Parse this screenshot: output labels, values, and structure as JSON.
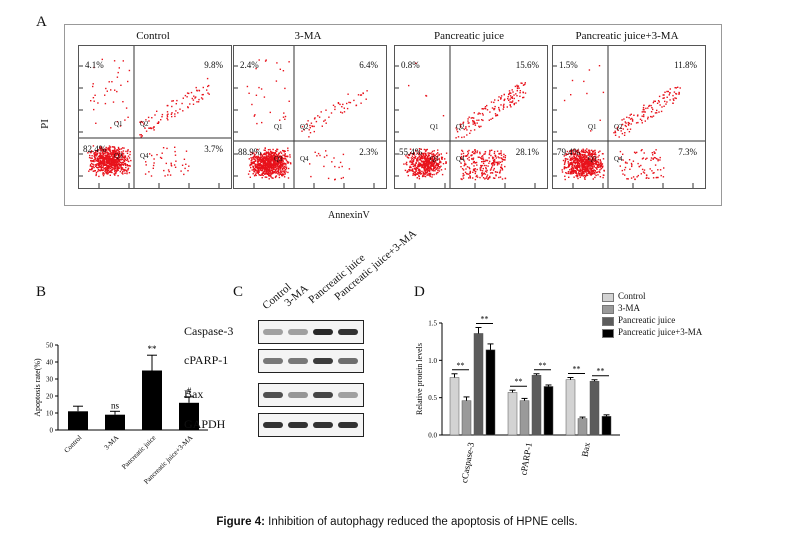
{
  "panel_labels": {
    "a": "A",
    "b": "B",
    "c": "C",
    "d": "D"
  },
  "flow": {
    "ylabel": "PI",
    "xlabel": "AnnexinV",
    "quadrant_names": [
      "Q1",
      "Q2",
      "Q3",
      "Q4"
    ],
    "panels": [
      {
        "title": "Control",
        "q1": "4.1%",
        "q2": "9.8%",
        "q3": "82.4%",
        "q4": "3.7%"
      },
      {
        "title": "3-MA",
        "q1": "2.4%",
        "q2": "6.4%",
        "q3": "88.9%",
        "q4": "2.3%"
      },
      {
        "title": "Pancreatic juice",
        "q1": "0.8%",
        "q2": "15.6%",
        "q3": "55.4%",
        "q4": "28.1%"
      },
      {
        "title": "Pancreatic juice+3-MA",
        "q1": "1.5%",
        "q2": "11.8%",
        "q3": "79.4%",
        "q4": "7.3%"
      }
    ]
  },
  "chart_data": [
    {
      "type": "bar",
      "ylabel": "Apoptosis rate(%)",
      "ylim": [
        0,
        50
      ],
      "yticks": [
        "0",
        "10",
        "20",
        "30",
        "40",
        "50"
      ],
      "categories": [
        "Control",
        "3-MA",
        "Pancreatic juice",
        "Pancreatic juice+3-MA"
      ],
      "values": [
        11,
        9,
        35,
        16
      ],
      "errors": [
        3,
        2,
        9,
        3.5
      ],
      "annotations": [
        "",
        "ns",
        "**",
        "#"
      ],
      "color": "#000000"
    },
    {
      "type": "bar",
      "ylabel": "Relative protein levels",
      "ylim": [
        0,
        1.5
      ],
      "yticks": [
        "0.0",
        "0.5",
        "1.0",
        "1.5"
      ],
      "categories": [
        "cCaspase-3",
        "cPARP-1",
        "Bax"
      ],
      "legend": "top-right",
      "series": [
        {
          "name": "Control",
          "values": [
            0.77,
            0.57,
            0.74
          ],
          "errors": [
            0.05,
            0.03,
            0.03
          ],
          "color": "#d3d3d3"
        },
        {
          "name": "3-MA",
          "values": [
            0.46,
            0.46,
            0.22
          ],
          "errors": [
            0.05,
            0.03,
            0.02
          ],
          "color": "#9a9a9a"
        },
        {
          "name": "Pancreatic juice",
          "values": [
            1.36,
            0.8,
            0.72
          ],
          "errors": [
            0.08,
            0.02,
            0.02
          ],
          "color": "#5c5c5c"
        },
        {
          "name": "Pancreatic juice+3-MA",
          "values": [
            1.14,
            0.65,
            0.25
          ],
          "errors": [
            0.08,
            0.02,
            0.02
          ],
          "color": "#000000"
        }
      ],
      "significance": "**"
    }
  ],
  "western": {
    "lanes": [
      "Control",
      "3-MA",
      "Pancreatic juice",
      "Pancreatic juice+3-MA"
    ],
    "proteins": [
      "Caspase-3",
      "cPARP-1",
      "Bax",
      "GAPDH"
    ],
    "intensity": [
      [
        0.35,
        0.35,
        0.95,
        0.9
      ],
      [
        0.55,
        0.55,
        0.85,
        0.6
      ],
      [
        0.75,
        0.4,
        0.8,
        0.35
      ],
      [
        0.9,
        0.9,
        0.9,
        0.9
      ]
    ]
  },
  "caption": {
    "bold": "Figure 4:",
    "text": " Inhibition of autophagy reduced the apoptosis of HPNE cells."
  }
}
